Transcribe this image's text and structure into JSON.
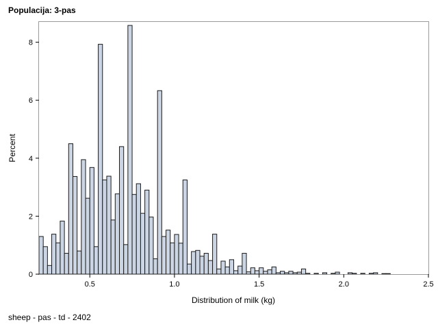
{
  "header": {
    "title": "Populacija: 3-pas"
  },
  "footer": {
    "note": "sheep - pas - td - 2402"
  },
  "colors": {
    "bar_fill": "#cbd5e3",
    "bar_stroke": "#1a1a1a",
    "frame": "#9a9a9a",
    "background": "#ffffff"
  },
  "chart_data": {
    "type": "bar",
    "subtype": "histogram",
    "xlabel": "Distribution of milk (kg)",
    "ylabel": "Percent",
    "xlim": [
      0.2,
      2.5
    ],
    "ylim": [
      0,
      8.7
    ],
    "xticks": [
      0.5,
      1.0,
      1.5,
      2.0,
      2.5
    ],
    "xtick_labels": [
      "0.5",
      "1.0",
      "1.5",
      "2.0",
      "2.5"
    ],
    "yticks": [
      0,
      2,
      4,
      6,
      8
    ],
    "ytick_labels": [
      "0",
      "2",
      "4",
      "6",
      "8"
    ],
    "grid": false,
    "legend": "none",
    "bin_width": 0.025,
    "first_bin_start": 0.2,
    "values": [
      1.3,
      0.95,
      0.3,
      1.38,
      1.08,
      1.83,
      0.72,
      4.5,
      3.37,
      0.8,
      3.95,
      2.62,
      3.68,
      0.95,
      7.93,
      3.25,
      3.38,
      1.87,
      2.77,
      4.4,
      1.02,
      8.58,
      2.75,
      3.12,
      2.1,
      2.9,
      1.97,
      0.53,
      6.33,
      1.3,
      1.52,
      1.08,
      1.37,
      1.07,
      3.25,
      0.35,
      0.78,
      0.82,
      0.62,
      0.72,
      0.47,
      1.38,
      0.18,
      0.45,
      0.25,
      0.5,
      0.12,
      0.28,
      0.72,
      0.08,
      0.22,
      0.12,
      0.22,
      0.1,
      0.15,
      0.25,
      0.05,
      0.1,
      0.05,
      0.1,
      0.05,
      0.07,
      0.18,
      0.03,
      0,
      0.03,
      0,
      0.05,
      0,
      0.03,
      0.07,
      0,
      0,
      0.05,
      0.03,
      0,
      0.03,
      0,
      0.03,
      0.05,
      0,
      0.02,
      0.02
    ]
  }
}
